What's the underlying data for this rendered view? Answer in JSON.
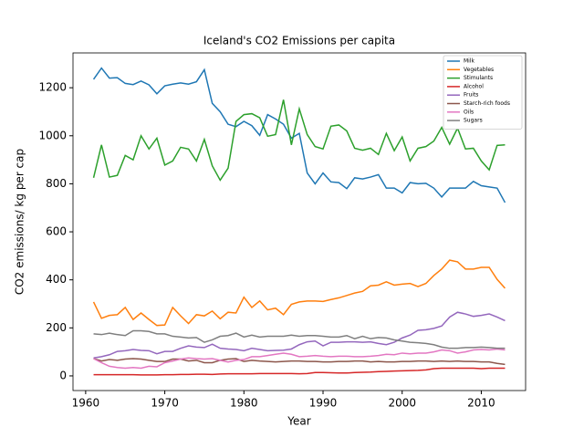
{
  "chart_data": {
    "type": "line",
    "title": "Iceland's CO2 Emissions per capita",
    "x_label": "Year",
    "y_label": "CO2 emissions/ kg per cap",
    "x": [
      1961,
      1962,
      1963,
      1964,
      1965,
      1966,
      1967,
      1968,
      1969,
      1970,
      1971,
      1972,
      1973,
      1974,
      1975,
      1976,
      1977,
      1978,
      1979,
      1980,
      1981,
      1982,
      1983,
      1984,
      1985,
      1986,
      1987,
      1988,
      1989,
      1990,
      1991,
      1992,
      1993,
      1994,
      1995,
      1996,
      1997,
      1998,
      1999,
      2000,
      2001,
      2002,
      2003,
      2004,
      2005,
      2006,
      2007,
      2008,
      2009,
      2010,
      2011,
      2012,
      2013
    ],
    "xlim": [
      1958.4,
      2015.6
    ],
    "xticks": [
      1960,
      1970,
      1980,
      1990,
      2000,
      2010
    ],
    "ylim": [
      -61,
      1345
    ],
    "yticks": [
      0,
      200,
      400,
      600,
      800,
      1000,
      1200
    ],
    "legend": "upper right",
    "series": [
      {
        "name": "Milk",
        "color": "#1f77b4",
        "values": [
          1235,
          1282,
          1240,
          1242,
          1218,
          1213,
          1228,
          1212,
          1175,
          1208,
          1215,
          1220,
          1215,
          1225,
          1275,
          1135,
          1100,
          1048,
          1038,
          1060,
          1042,
          1002,
          1088,
          1070,
          1048,
          990,
          1010,
          845,
          800,
          845,
          808,
          805,
          780,
          825,
          820,
          828,
          838,
          782,
          782,
          762,
          805,
          800,
          802,
          782,
          745,
          782,
          782,
          782,
          810,
          792,
          787,
          782,
          722
        ]
      },
      {
        "name": "Vegetables",
        "color": "#ff7f0e",
        "values": [
          308,
          240,
          252,
          255,
          285,
          235,
          262,
          235,
          210,
          212,
          285,
          250,
          218,
          255,
          250,
          270,
          238,
          265,
          262,
          328,
          285,
          312,
          275,
          282,
          255,
          298,
          308,
          312,
          312,
          310,
          318,
          325,
          335,
          345,
          352,
          375,
          378,
          392,
          378,
          382,
          385,
          372,
          385,
          418,
          445,
          482,
          475,
          445,
          445,
          452,
          452,
          402,
          365
        ]
      },
      {
        "name": "Stimulants",
        "color": "#2ca02c",
        "values": [
          825,
          962,
          828,
          835,
          918,
          900,
          1000,
          945,
          990,
          878,
          895,
          952,
          945,
          895,
          985,
          875,
          815,
          865,
          1060,
          1088,
          1092,
          1075,
          998,
          1005,
          1150,
          962,
          1112,
          1005,
          955,
          945,
          1040,
          1045,
          1020,
          948,
          940,
          948,
          922,
          1010,
          938,
          995,
          895,
          948,
          955,
          978,
          1035,
          965,
          1032,
          945,
          948,
          895,
          858,
          960,
          962
        ]
      },
      {
        "name": "Alcohol",
        "color": "#d62728",
        "values": [
          5,
          5,
          5,
          5,
          5,
          5,
          4,
          4,
          4,
          5,
          5,
          6,
          6,
          7,
          7,
          6,
          8,
          9,
          9,
          9,
          9,
          10,
          10,
          10,
          10,
          10,
          9,
          10,
          14,
          14,
          13,
          12,
          12,
          14,
          15,
          16,
          18,
          19,
          20,
          21,
          22,
          23,
          25,
          30,
          32,
          32,
          32,
          32,
          32,
          30,
          32,
          32,
          32
        ]
      },
      {
        "name": "Fruits",
        "color": "#9467bd",
        "values": [
          75,
          80,
          88,
          102,
          105,
          110,
          106,
          105,
          92,
          102,
          102,
          115,
          125,
          120,
          118,
          132,
          115,
          112,
          110,
          105,
          115,
          110,
          105,
          106,
          107,
          112,
          130,
          142,
          145,
          125,
          140,
          140,
          142,
          142,
          140,
          142,
          135,
          130,
          140,
          158,
          170,
          190,
          192,
          198,
          208,
          245,
          265,
          258,
          248,
          252,
          258,
          245,
          230
        ]
      },
      {
        "name": "Starch-rich foods",
        "color": "#8c564b",
        "values": [
          72,
          62,
          68,
          65,
          70,
          72,
          70,
          65,
          60,
          60,
          70,
          70,
          62,
          65,
          55,
          55,
          65,
          70,
          72,
          60,
          65,
          62,
          60,
          58,
          60,
          62,
          62,
          60,
          60,
          58,
          58,
          60,
          60,
          62,
          62,
          58,
          60,
          58,
          58,
          60,
          60,
          62,
          62,
          60,
          62,
          60,
          62,
          60,
          60,
          58,
          58,
          52,
          48
        ]
      },
      {
        "name": "Oils",
        "color": "#e377c2",
        "values": [
          72,
          55,
          40,
          35,
          32,
          35,
          32,
          40,
          38,
          55,
          62,
          70,
          75,
          72,
          70,
          72,
          65,
          58,
          65,
          68,
          80,
          80,
          85,
          90,
          95,
          90,
          80,
          82,
          85,
          82,
          80,
          82,
          82,
          80,
          80,
          82,
          85,
          90,
          88,
          95,
          92,
          95,
          95,
          100,
          108,
          105,
          95,
          100,
          108,
          110,
          108,
          112,
          108
        ]
      },
      {
        "name": "Sugars",
        "color": "#7f7f7f",
        "values": [
          175,
          172,
          178,
          172,
          168,
          188,
          188,
          185,
          175,
          175,
          165,
          162,
          158,
          160,
          140,
          150,
          165,
          168,
          178,
          162,
          170,
          162,
          165,
          165,
          165,
          170,
          165,
          168,
          168,
          165,
          162,
          162,
          168,
          155,
          165,
          155,
          160,
          158,
          150,
          145,
          140,
          138,
          135,
          130,
          120,
          115,
          115,
          118,
          118,
          120,
          118,
          115,
          115
        ]
      }
    ]
  }
}
